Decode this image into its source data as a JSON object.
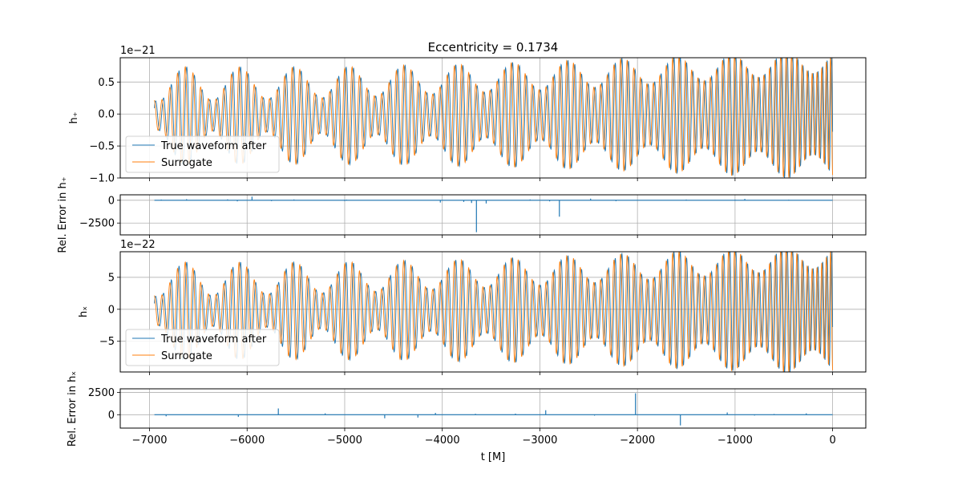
{
  "chart_data": {
    "type": "line",
    "title": "Eccentricity = 0.1734",
    "xlabel": "t [M]",
    "xlim": [
      -7300,
      340
    ],
    "xticks": [
      -7000,
      -6000,
      -5000,
      -4000,
      -3000,
      -2000,
      -1000,
      0
    ],
    "xtick_labels": [
      "−7000",
      "−6000",
      "−5000",
      "−4000",
      "−3000",
      "−2000",
      "−1000",
      "0"
    ],
    "grid": true,
    "colors": {
      "true_waveform": "#1f77b4",
      "surrogate": "#ff7f0e",
      "grid": "#b0b0b0"
    },
    "panels": [
      {
        "key": "hplus",
        "ylabel": "h₊",
        "offset_text": "1e−21",
        "ylim": [
          -1.0,
          0.88
        ],
        "yticks": [
          -1.0,
          -0.5,
          0.0,
          0.5
        ],
        "ytick_labels": [
          "−1.0",
          "−0.5",
          "0.0",
          "0.5"
        ],
        "legend": {
          "placement": "lower-left",
          "entries": [
            "True waveform after",
            "Surrogate"
          ]
        },
        "series": [
          {
            "name": "True waveform after",
            "color": "#1f77b4",
            "phase_shift": 0.0
          },
          {
            "name": "Surrogate",
            "color": "#ff7f0e",
            "phase_shift": 1.2
          }
        ],
        "amplitude": {
          "start": 0.5,
          "end": 0.85
        }
      },
      {
        "key": "err_plus",
        "ylabel": "Rel. Error in h₊",
        "ylim": [
          -3800,
          600
        ],
        "yticks": [
          -2500,
          0
        ],
        "ytick_labels": [
          "−2500",
          "0"
        ],
        "spikes": [
          {
            "t": -3650,
            "v": -3500
          },
          {
            "t": -2800,
            "v": -1800
          },
          {
            "t": -6880,
            "v": 80
          },
          {
            "t": -6620,
            "v": 120
          },
          {
            "t": -6200,
            "v": 100
          },
          {
            "t": -6100,
            "v": -120
          },
          {
            "t": -5950,
            "v": 400
          },
          {
            "t": -5750,
            "v": -90
          },
          {
            "t": -5520,
            "v": 90
          },
          {
            "t": -5000,
            "v": -80
          },
          {
            "t": -4980,
            "v": 70
          },
          {
            "t": -4020,
            "v": -250
          },
          {
            "t": -3780,
            "v": -180
          },
          {
            "t": -3700,
            "v": -300
          },
          {
            "t": -3550,
            "v": -350
          },
          {
            "t": -3100,
            "v": 90
          },
          {
            "t": -2900,
            "v": -120
          },
          {
            "t": -2480,
            "v": 180
          },
          {
            "t": -2220,
            "v": -100
          },
          {
            "t": -1500,
            "v": 80
          },
          {
            "t": -1000,
            "v": 70
          },
          {
            "t": -900,
            "v": 150
          },
          {
            "t": -450,
            "v": 60
          }
        ]
      },
      {
        "key": "hcross",
        "ylabel": "hₓ",
        "offset_text": "1e−22",
        "ylim": [
          -9.8,
          9.0
        ],
        "yticks": [
          -5,
          0,
          5
        ],
        "ytick_labels": [
          "−5",
          "0",
          "5"
        ],
        "legend": {
          "placement": "lower-left",
          "entries": [
            "True waveform after",
            "Surrogate"
          ]
        },
        "series": [
          {
            "name": "True waveform after",
            "color": "#1f77b4",
            "phase_shift": 0.0
          },
          {
            "name": "Surrogate",
            "color": "#ff7f0e",
            "phase_shift": 1.2
          }
        ],
        "amplitude": {
          "start": 5.0,
          "end": 8.5
        }
      },
      {
        "key": "err_cross",
        "ylabel": "Rel. Error in hₓ",
        "ylim": [
          -1500,
          2900
        ],
        "yticks": [
          0,
          2500
        ],
        "ytick_labels": [
          "0",
          "2500"
        ],
        "spikes": [
          {
            "t": -2020,
            "v": 2400
          },
          {
            "t": -1560,
            "v": -1200
          },
          {
            "t": -5680,
            "v": 700
          },
          {
            "t": -2940,
            "v": 500
          },
          {
            "t": -4590,
            "v": -400
          },
          {
            "t": -6830,
            "v": -180
          },
          {
            "t": -6090,
            "v": -250
          },
          {
            "t": -4250,
            "v": -320
          },
          {
            "t": -4070,
            "v": 200
          },
          {
            "t": -5200,
            "v": 150
          },
          {
            "t": -3660,
            "v": 100
          },
          {
            "t": -3250,
            "v": 120
          },
          {
            "t": -1080,
            "v": 250
          },
          {
            "t": -270,
            "v": 150
          },
          {
            "t": -2440,
            "v": -100
          },
          {
            "t": -600,
            "v": 80
          },
          {
            "t": -800,
            "v": -90
          }
        ]
      }
    ]
  }
}
